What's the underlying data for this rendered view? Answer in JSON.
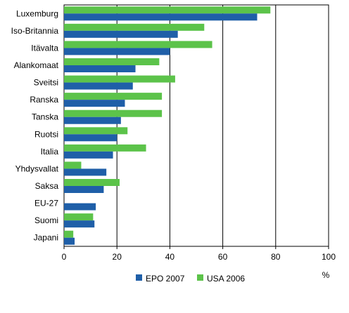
{
  "chart_data": {
    "type": "bar",
    "orientation": "horizontal",
    "categories": [
      "Luxemburg",
      "Iso-Britannia",
      "Itävalta",
      "Alankomaat",
      "Sveitsi",
      "Ranska",
      "Tanska",
      "Ruotsi",
      "Italia",
      "Yhdysvallat",
      "Saksa",
      "EU-27",
      "Suomi",
      "Japani"
    ],
    "series": [
      {
        "name": "EPO 2007",
        "color": "#1f5fa8",
        "values": [
          73,
          43,
          40,
          27,
          26,
          23,
          21.5,
          20,
          18.5,
          16,
          15,
          12,
          11.5,
          4
        ]
      },
      {
        "name": "USA 2006",
        "color": "#5cc34a",
        "values": [
          78,
          53,
          56,
          36,
          42,
          37,
          37,
          24,
          31,
          6.5,
          21,
          null,
          11,
          3.5
        ]
      }
    ],
    "xlim": [
      0,
      100
    ],
    "xticks": [
      0,
      20,
      40,
      60,
      80,
      100
    ],
    "xlabel": "%",
    "grid": "vertical",
    "legend_position": "bottom"
  }
}
